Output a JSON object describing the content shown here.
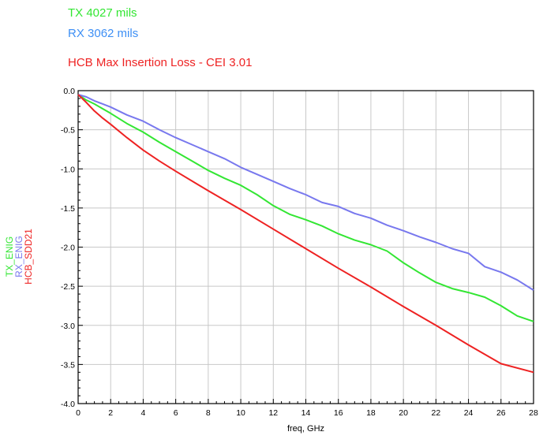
{
  "legend": {
    "tx": "TX 4027 mils",
    "rx": "RX 3062 mils",
    "hcb": "HCB Max Insertion Loss - CEI 3.01"
  },
  "colors": {
    "tx": "#33e633",
    "rx": "#3d8ff5",
    "rx_trace": "#7878ee",
    "hcb": "#ee2222"
  },
  "chart_data": {
    "type": "line",
    "xlabel": "freq, GHz",
    "ylabel_parts": [
      "TX_ENIG",
      "RX_ENIG",
      "HCB_SDD21"
    ],
    "xlim": [
      0,
      28
    ],
    "ylim": [
      -4.0,
      0.0
    ],
    "xticks": [
      0,
      2,
      4,
      6,
      8,
      10,
      12,
      14,
      16,
      18,
      20,
      22,
      24,
      26,
      28
    ],
    "yticks": [
      0.0,
      -0.5,
      -1.0,
      -1.5,
      -2.0,
      -2.5,
      -3.0,
      -3.5,
      -4.0
    ],
    "ytick_labels": [
      "0.0",
      "-0.5",
      "-1.0",
      "-1.5",
      "-2.0",
      "-2.5",
      "-3.0",
      "-3.5",
      "-4.0"
    ],
    "grid": true,
    "series": [
      {
        "name": "TX_ENIG",
        "color": "#33e633",
        "x": [
          0,
          0.5,
          1,
          2,
          3,
          4,
          5,
          6,
          7,
          8,
          9,
          10,
          11,
          12,
          13,
          14,
          15,
          16,
          17,
          18,
          19,
          20,
          21,
          22,
          23,
          24,
          25,
          26,
          27,
          28
        ],
        "y": [
          -0.05,
          -0.12,
          -0.17,
          -0.29,
          -0.42,
          -0.53,
          -0.66,
          -0.78,
          -0.9,
          -1.02,
          -1.12,
          -1.21,
          -1.33,
          -1.47,
          -1.58,
          -1.65,
          -1.73,
          -1.83,
          -1.91,
          -1.97,
          -2.05,
          -2.2,
          -2.33,
          -2.45,
          -2.53,
          -2.58,
          -2.64,
          -2.75,
          -2.88,
          -2.95
        ]
      },
      {
        "name": "RX_ENIG",
        "color": "#7878ee",
        "x": [
          0,
          0.5,
          1,
          2,
          3,
          4,
          5,
          6,
          7,
          8,
          9,
          10,
          11,
          12,
          13,
          14,
          15,
          16,
          17,
          18,
          19,
          20,
          21,
          22,
          23,
          24,
          25,
          26,
          27,
          28
        ],
        "y": [
          -0.05,
          -0.08,
          -0.13,
          -0.21,
          -0.31,
          -0.39,
          -0.5,
          -0.6,
          -0.69,
          -0.78,
          -0.87,
          -0.98,
          -1.07,
          -1.16,
          -1.25,
          -1.33,
          -1.43,
          -1.48,
          -1.57,
          -1.63,
          -1.72,
          -1.79,
          -1.87,
          -1.94,
          -2.02,
          -2.08,
          -2.25,
          -2.32,
          -2.42,
          -2.55
        ]
      },
      {
        "name": "HCB_SDD21",
        "color": "#ee2222",
        "x": [
          0,
          0.5,
          1,
          1.5,
          2,
          3,
          4,
          5,
          6,
          8,
          10,
          12,
          14,
          16,
          18,
          20,
          22,
          24,
          26,
          28
        ],
        "y": [
          -0.05,
          -0.15,
          -0.26,
          -0.35,
          -0.43,
          -0.6,
          -0.76,
          -0.9,
          -1.03,
          -1.28,
          -1.52,
          -1.77,
          -2.02,
          -2.27,
          -2.51,
          -2.76,
          -3.0,
          -3.25,
          -3.49,
          -3.6
        ]
      }
    ]
  }
}
